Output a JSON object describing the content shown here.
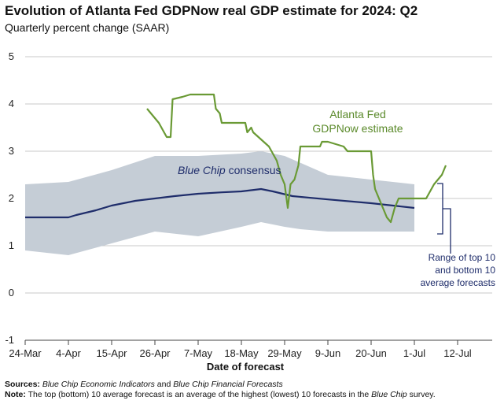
{
  "title": "Evolution of Atlanta Fed GDPNow real GDP estimate for 2024: Q2",
  "subtitle": "Quarterly percent change (SAAR)",
  "footer": {
    "sources_label": "Sources:",
    "sources_text_1": "Blue Chip Economic Indicators",
    "sources_and": " and ",
    "sources_text_2": "Blue Chip Financial Forecasts",
    "note_label": "Note:",
    "note_text_1": " The top (bottom) 10 average forecast is an average of the highest (lowest) 10 forecasts in the ",
    "note_italic": "Blue Chip",
    "note_text_2": " survey."
  },
  "chart_data": {
    "type": "line",
    "title": "Evolution of Atlanta Fed GDPNow real GDP estimate for 2024: Q2",
    "subtitle": "Quarterly percent change (SAAR)",
    "xlabel": "Date of forecast",
    "ylabel": "",
    "ylim": [
      -1,
      5
    ],
    "yticks": [
      "5",
      "4",
      "3",
      "2",
      "1",
      "0",
      "-1"
    ],
    "xlim": [
      0,
      108
    ],
    "xticks": [
      {
        "x": 0,
        "label": "24-Mar"
      },
      {
        "x": 11,
        "label": "4-Apr"
      },
      {
        "x": 22,
        "label": "15-Apr"
      },
      {
        "x": 33,
        "label": "26-Apr"
      },
      {
        "x": 44,
        "label": "7-May"
      },
      {
        "x": 55,
        "label": "18-May"
      },
      {
        "x": 66,
        "label": "29-May"
      },
      {
        "x": 77,
        "label": "9-Jun"
      },
      {
        "x": 88,
        "label": "20-Jun"
      },
      {
        "x": 99,
        "label": "1-Jul"
      },
      {
        "x": 110,
        "label": "12-Jul"
      }
    ],
    "grid": "horizontal",
    "annotations": {
      "gdpnow_line1": "Atlanta Fed",
      "gdpnow_line2": "GDPNow estimate",
      "bluechip_italic": "Blue Chip",
      "bluechip_rest": " consensus",
      "range_line1": "Range of top 10",
      "range_line2": "and bottom 10",
      "range_line3": "average forecasts"
    },
    "series": [
      {
        "name": "Atlanta Fed GDPNow estimate",
        "color": "#6a9a35",
        "points": [
          [
            31,
            3.9
          ],
          [
            34,
            3.6
          ],
          [
            35,
            3.45
          ],
          [
            36,
            3.3
          ],
          [
            37,
            3.3
          ],
          [
            37.5,
            4.1
          ],
          [
            40,
            4.15
          ],
          [
            42,
            4.2
          ],
          [
            48,
            4.2
          ],
          [
            48.5,
            3.9
          ],
          [
            49.5,
            3.8
          ],
          [
            50,
            3.6
          ],
          [
            56,
            3.6
          ],
          [
            56.5,
            3.4
          ],
          [
            57.5,
            3.5
          ],
          [
            58,
            3.4
          ],
          [
            62,
            3.1
          ],
          [
            63,
            2.95
          ],
          [
            64,
            2.8
          ],
          [
            65,
            2.5
          ],
          [
            66,
            2.3
          ],
          [
            66.8,
            1.8
          ],
          [
            67.5,
            2.3
          ],
          [
            68.5,
            2.4
          ],
          [
            69.5,
            2.7
          ],
          [
            70,
            3.1
          ],
          [
            73,
            3.1
          ],
          [
            75,
            3.1
          ],
          [
            75.5,
            3.2
          ],
          [
            77,
            3.2
          ],
          [
            79,
            3.15
          ],
          [
            81,
            3.1
          ],
          [
            82,
            3.0
          ],
          [
            88,
            3.0
          ],
          [
            88.5,
            2.5
          ],
          [
            89,
            2.2
          ],
          [
            90,
            2.0
          ],
          [
            91,
            1.8
          ],
          [
            92,
            1.6
          ],
          [
            93,
            1.5
          ],
          [
            94,
            1.8
          ],
          [
            95,
            2.0
          ],
          [
            102,
            2.0
          ],
          [
            104,
            2.3
          ],
          [
            106,
            2.5
          ],
          [
            107,
            2.7
          ]
        ]
      },
      {
        "name": "Blue Chip consensus",
        "color": "#1f2d6b",
        "points": [
          [
            0,
            1.6
          ],
          [
            11,
            1.6
          ],
          [
            13,
            1.65
          ],
          [
            18,
            1.75
          ],
          [
            22,
            1.85
          ],
          [
            28,
            1.95
          ],
          [
            33,
            2.0
          ],
          [
            38,
            2.05
          ],
          [
            44,
            2.1
          ],
          [
            50,
            2.13
          ],
          [
            55,
            2.15
          ],
          [
            60,
            2.2
          ],
          [
            63,
            2.15
          ],
          [
            68,
            2.05
          ],
          [
            77,
            1.98
          ],
          [
            88,
            1.9
          ],
          [
            99,
            1.8
          ]
        ]
      },
      {
        "name": "Range of top 10 and bottom 10 average forecasts",
        "color": "#c5cdd6",
        "upper": [
          [
            0,
            2.3
          ],
          [
            11,
            2.35
          ],
          [
            22,
            2.6
          ],
          [
            33,
            2.9
          ],
          [
            44,
            2.9
          ],
          [
            55,
            2.95
          ],
          [
            60,
            3.0
          ],
          [
            66,
            2.9
          ],
          [
            77,
            2.5
          ],
          [
            88,
            2.4
          ],
          [
            99,
            2.3
          ]
        ],
        "lower": [
          [
            0,
            0.9
          ],
          [
            11,
            0.8
          ],
          [
            22,
            1.05
          ],
          [
            33,
            1.3
          ],
          [
            44,
            1.2
          ],
          [
            55,
            1.4
          ],
          [
            60,
            1.5
          ],
          [
            66,
            1.4
          ],
          [
            70,
            1.35
          ],
          [
            77,
            1.3
          ],
          [
            88,
            1.3
          ],
          [
            99,
            1.3
          ]
        ]
      }
    ]
  }
}
